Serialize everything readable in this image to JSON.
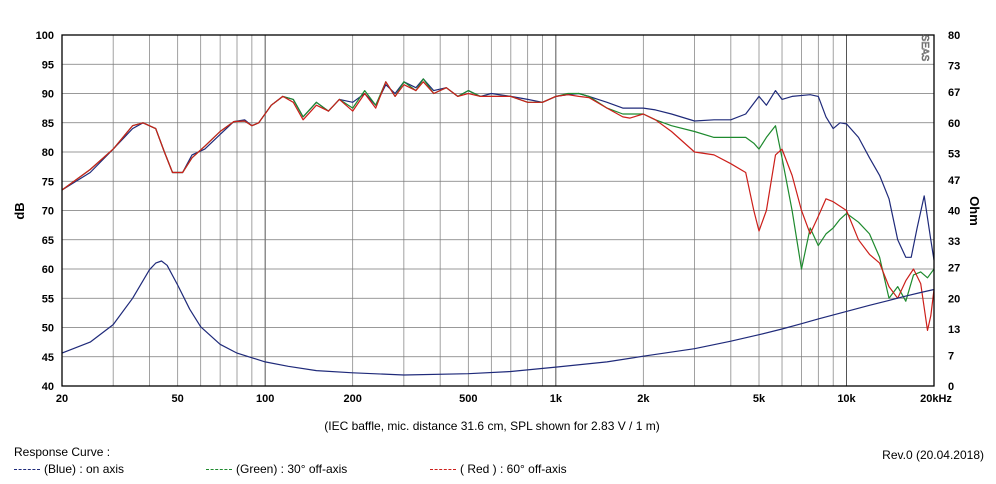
{
  "chart_data": {
    "type": "line",
    "xscale": "log",
    "xlim": [
      20,
      20000
    ],
    "ylim": [
      40,
      100
    ],
    "y2lim": [
      0,
      80
    ],
    "ylabel": "dB",
    "y2label": "Ohm",
    "grid": true,
    "x_tick_labels": [
      {
        "value": 20,
        "label": "20"
      },
      {
        "value": 50,
        "label": "50"
      },
      {
        "value": 100,
        "label": "100"
      },
      {
        "value": 200,
        "label": "200"
      },
      {
        "value": 500,
        "label": "500"
      },
      {
        "value": 1000,
        "label": "1k"
      },
      {
        "value": 2000,
        "label": "2k"
      },
      {
        "value": 5000,
        "label": "5k"
      },
      {
        "value": 10000,
        "label": "10k"
      },
      {
        "value": 20000,
        "label": "20kHz"
      }
    ],
    "y_ticks": [
      40,
      45,
      50,
      55,
      60,
      65,
      70,
      75,
      80,
      85,
      90,
      95,
      100
    ],
    "y2_ticks": [
      0,
      7,
      13,
      20,
      27,
      33,
      40,
      47,
      53,
      60,
      67,
      73,
      80
    ],
    "caption": "(IEC baffle, mic. distance 31.6 cm, SPL shown for 2.83 V / 1 m)",
    "watermark": "SEAS",
    "series": [
      {
        "color": "#1f2a7a",
        "axis": "left",
        "points": [
          [
            20,
            73.5
          ],
          [
            25,
            76.5
          ],
          [
            30,
            80.5
          ],
          [
            35,
            84
          ],
          [
            38,
            85
          ],
          [
            42,
            84
          ],
          [
            45,
            80
          ],
          [
            48,
            76.5
          ],
          [
            52,
            76.5
          ],
          [
            56,
            79.5
          ],
          [
            62,
            80.5
          ],
          [
            70,
            83
          ],
          [
            78,
            85.2
          ],
          [
            85,
            85.5
          ],
          [
            90,
            84.5
          ],
          [
            95,
            85
          ],
          [
            105,
            88
          ],
          [
            115,
            89.5
          ],
          [
            125,
            89
          ],
          [
            135,
            86
          ],
          [
            150,
            88.5
          ],
          [
            165,
            87
          ],
          [
            180,
            89
          ],
          [
            200,
            88.5
          ],
          [
            220,
            90
          ],
          [
            240,
            88
          ],
          [
            260,
            91.5
          ],
          [
            280,
            90
          ],
          [
            300,
            92
          ],
          [
            330,
            91
          ],
          [
            350,
            92.5
          ],
          [
            380,
            90.5
          ],
          [
            420,
            91
          ],
          [
            460,
            89.5
          ],
          [
            500,
            90.5
          ],
          [
            550,
            89.5
          ],
          [
            600,
            90
          ],
          [
            700,
            89.5
          ],
          [
            800,
            89
          ],
          [
            900,
            88.5
          ],
          [
            1000,
            89.5
          ],
          [
            1100,
            89.8
          ],
          [
            1200,
            90
          ],
          [
            1300,
            89.5
          ],
          [
            1500,
            88.5
          ],
          [
            1700,
            87.5
          ],
          [
            2000,
            87.5
          ],
          [
            2200,
            87.2
          ],
          [
            2500,
            86.5
          ],
          [
            3000,
            85.3
          ],
          [
            3500,
            85.5
          ],
          [
            4000,
            85.5
          ],
          [
            4500,
            86.5
          ],
          [
            5000,
            89.5
          ],
          [
            5300,
            88
          ],
          [
            5700,
            90.5
          ],
          [
            6000,
            89
          ],
          [
            6500,
            89.5
          ],
          [
            7500,
            89.8
          ],
          [
            8000,
            89.5
          ],
          [
            8500,
            86
          ],
          [
            9000,
            84
          ],
          [
            9500,
            85
          ],
          [
            10000,
            84.8
          ],
          [
            11000,
            82.5
          ],
          [
            12000,
            79
          ],
          [
            13000,
            76
          ],
          [
            14000,
            72
          ],
          [
            15000,
            65
          ],
          [
            16000,
            62
          ],
          [
            16700,
            62
          ],
          [
            17500,
            67
          ],
          [
            18500,
            72.5
          ],
          [
            19500,
            65
          ],
          [
            20000,
            61.5
          ]
        ]
      },
      {
        "color": "#1e8a2e",
        "axis": "left",
        "points": [
          [
            20,
            73.5
          ],
          [
            25,
            77
          ],
          [
            30,
            80.5
          ],
          [
            35,
            84.5
          ],
          [
            38,
            85
          ],
          [
            42,
            84
          ],
          [
            45,
            80
          ],
          [
            48,
            76.5
          ],
          [
            52,
            76.5
          ],
          [
            56,
            79
          ],
          [
            62,
            81
          ],
          [
            70,
            83.5
          ],
          [
            78,
            85.2
          ],
          [
            85,
            85.3
          ],
          [
            90,
            84.5
          ],
          [
            95,
            85
          ],
          [
            105,
            88
          ],
          [
            115,
            89.5
          ],
          [
            125,
            89
          ],
          [
            135,
            86
          ],
          [
            150,
            88.5
          ],
          [
            165,
            87
          ],
          [
            180,
            89
          ],
          [
            200,
            87.5
          ],
          [
            220,
            90.5
          ],
          [
            240,
            88
          ],
          [
            260,
            92
          ],
          [
            280,
            89.5
          ],
          [
            300,
            92
          ],
          [
            330,
            90.5
          ],
          [
            350,
            92.5
          ],
          [
            380,
            90
          ],
          [
            420,
            91
          ],
          [
            460,
            89.5
          ],
          [
            500,
            90.5
          ],
          [
            550,
            89.5
          ],
          [
            600,
            89.5
          ],
          [
            700,
            89.5
          ],
          [
            800,
            88.5
          ],
          [
            900,
            88.5
          ],
          [
            1000,
            89.5
          ],
          [
            1100,
            90
          ],
          [
            1200,
            90
          ],
          [
            1300,
            89.5
          ],
          [
            1500,
            87.5
          ],
          [
            1700,
            86.5
          ],
          [
            2000,
            86.5
          ],
          [
            2200,
            85.5
          ],
          [
            2500,
            84.5
          ],
          [
            3000,
            83.5
          ],
          [
            3500,
            82.5
          ],
          [
            4000,
            82.5
          ],
          [
            4500,
            82.5
          ],
          [
            4800,
            81.5
          ],
          [
            5000,
            80.5
          ],
          [
            5300,
            82.5
          ],
          [
            5700,
            84.5
          ],
          [
            6000,
            79
          ],
          [
            6500,
            70
          ],
          [
            7000,
            60
          ],
          [
            7500,
            67
          ],
          [
            8000,
            64
          ],
          [
            8500,
            66
          ],
          [
            9000,
            67
          ],
          [
            9500,
            68.5
          ],
          [
            10000,
            69.5
          ],
          [
            11000,
            68
          ],
          [
            12000,
            66
          ],
          [
            13000,
            62
          ],
          [
            14000,
            55
          ],
          [
            15000,
            57
          ],
          [
            16000,
            54.5
          ],
          [
            17000,
            59
          ],
          [
            18000,
            59.5
          ],
          [
            19000,
            58.5
          ],
          [
            20000,
            60
          ]
        ]
      },
      {
        "color": "#cc1f1a",
        "axis": "left",
        "points": [
          [
            20,
            73.5
          ],
          [
            25,
            77
          ],
          [
            30,
            80.5
          ],
          [
            35,
            84.5
          ],
          [
            38,
            85
          ],
          [
            42,
            84
          ],
          [
            45,
            80
          ],
          [
            48,
            76.5
          ],
          [
            52,
            76.5
          ],
          [
            56,
            79
          ],
          [
            62,
            81
          ],
          [
            70,
            83.5
          ],
          [
            78,
            85.2
          ],
          [
            85,
            85.3
          ],
          [
            90,
            84.5
          ],
          [
            95,
            85
          ],
          [
            105,
            88
          ],
          [
            115,
            89.5
          ],
          [
            125,
            88.5
          ],
          [
            135,
            85.5
          ],
          [
            150,
            88
          ],
          [
            165,
            87
          ],
          [
            180,
            89
          ],
          [
            200,
            87
          ],
          [
            220,
            90
          ],
          [
            240,
            87.5
          ],
          [
            260,
            92
          ],
          [
            280,
            89.5
          ],
          [
            300,
            91.5
          ],
          [
            330,
            90.5
          ],
          [
            350,
            92
          ],
          [
            380,
            90
          ],
          [
            420,
            91
          ],
          [
            460,
            89.5
          ],
          [
            500,
            90
          ],
          [
            550,
            89.5
          ],
          [
            600,
            89.5
          ],
          [
            700,
            89.5
          ],
          [
            800,
            88.5
          ],
          [
            900,
            88.5
          ],
          [
            1000,
            89.5
          ],
          [
            1100,
            89.8
          ],
          [
            1200,
            89.5
          ],
          [
            1300,
            89.3
          ],
          [
            1500,
            87.5
          ],
          [
            1700,
            86
          ],
          [
            1800,
            85.8
          ],
          [
            2000,
            86.5
          ],
          [
            2200,
            85.5
          ],
          [
            2500,
            83.5
          ],
          [
            3000,
            80
          ],
          [
            3500,
            79.5
          ],
          [
            4000,
            78
          ],
          [
            4500,
            76.5
          ],
          [
            4800,
            70
          ],
          [
            5000,
            66.5
          ],
          [
            5300,
            70
          ],
          [
            5700,
            79.5
          ],
          [
            6000,
            80.5
          ],
          [
            6500,
            76
          ],
          [
            7000,
            70
          ],
          [
            7500,
            66
          ],
          [
            8000,
            69
          ],
          [
            8500,
            72
          ],
          [
            9000,
            71.5
          ],
          [
            10000,
            70
          ],
          [
            11000,
            65
          ],
          [
            12000,
            62.5
          ],
          [
            13000,
            61
          ],
          [
            14000,
            57
          ],
          [
            15000,
            55
          ],
          [
            16000,
            58
          ],
          [
            17000,
            60
          ],
          [
            18000,
            57.5
          ],
          [
            19000,
            49.5
          ],
          [
            19500,
            52
          ],
          [
            20000,
            56.5
          ]
        ]
      },
      {
        "color": "#1f2a7a",
        "axis": "right",
        "points": [
          [
            20,
            7.5
          ],
          [
            25,
            10
          ],
          [
            30,
            14
          ],
          [
            35,
            20
          ],
          [
            38,
            24
          ],
          [
            40,
            26.5
          ],
          [
            42,
            28
          ],
          [
            44,
            28.5
          ],
          [
            46,
            27.5
          ],
          [
            50,
            23
          ],
          [
            55,
            17.5
          ],
          [
            60,
            13.5
          ],
          [
            70,
            9.5
          ],
          [
            80,
            7.5
          ],
          [
            100,
            5.5
          ],
          [
            120,
            4.5
          ],
          [
            150,
            3.5
          ],
          [
            200,
            3
          ],
          [
            300,
            2.5
          ],
          [
            500,
            2.8
          ],
          [
            700,
            3.3
          ],
          [
            1000,
            4.3
          ],
          [
            1500,
            5.5
          ],
          [
            2000,
            6.8
          ],
          [
            3000,
            8.5
          ],
          [
            4000,
            10.2
          ],
          [
            5000,
            11.7
          ],
          [
            6000,
            13
          ],
          [
            7000,
            14.2
          ],
          [
            8000,
            15.3
          ],
          [
            10000,
            17
          ],
          [
            12000,
            18.4
          ],
          [
            14000,
            19.5
          ],
          [
            16000,
            20.5
          ],
          [
            18000,
            21.3
          ],
          [
            20000,
            22
          ]
        ]
      }
    ]
  },
  "legend": {
    "title": "Response Curve :",
    "items": [
      {
        "color": "#1f2a7a",
        "label": "(Blue)  : on axis"
      },
      {
        "color": "#1e8a2e",
        "label": "(Green) : 30° off-axis"
      },
      {
        "color": "#cc1f1a",
        "label": "( Red ) : 60° off-axis"
      }
    ]
  },
  "revision": "Rev.0 (20.04.2018)"
}
